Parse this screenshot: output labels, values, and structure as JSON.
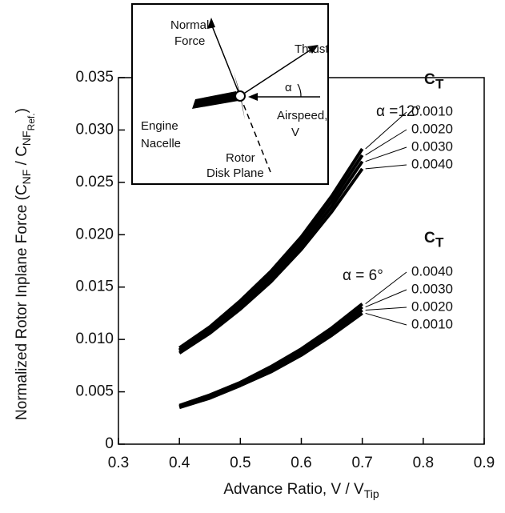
{
  "chart_data": {
    "type": "line",
    "x_label": [
      {
        "text": "Advance Ratio, V / V",
        "level": 0
      },
      {
        "text": "Tip",
        "level": 1
      }
    ],
    "y_label": [
      {
        "text": "Normalized Rotor Inplane Force (C",
        "level": 0
      },
      {
        "text": "NF",
        "level": 1
      },
      {
        "text": " / C",
        "level": 0
      },
      {
        "text": "NF",
        "level": 1
      },
      {
        "text": "Ref.",
        "level": 2
      },
      {
        "text": ")",
        "level": 0
      }
    ],
    "x": [
      0.4,
      0.45,
      0.5,
      0.55,
      0.6,
      0.65,
      0.7
    ],
    "groups": [
      {
        "alpha_label": "α =12°",
        "ct_label": "C",
        "ct_sub": "T",
        "series": [
          {
            "name": "0.0010",
            "color": "#000000",
            "values": [
              0.0092,
              0.0112,
              0.0137,
              0.0165,
              0.0198,
              0.0237,
              0.0282
            ]
          },
          {
            "name": "0.0020",
            "color": "#000000",
            "values": [
              0.009,
              0.011,
              0.0134,
              0.0162,
              0.0194,
              0.0232,
              0.0276
            ]
          },
          {
            "name": "0.0030",
            "color": "#000000",
            "values": [
              0.0089,
              0.0108,
              0.0132,
              0.0159,
              0.019,
              0.0227,
              0.027
            ]
          },
          {
            "name": "0.0040",
            "color": "#000000",
            "values": [
              0.0087,
              0.0106,
              0.0129,
              0.0155,
              0.0186,
              0.0222,
              0.0263
            ]
          }
        ]
      },
      {
        "alpha_label": "α = 6°",
        "ct_label": "C",
        "ct_sub": "T",
        "series": [
          {
            "name": "0.0040",
            "color": "#000000",
            "values": [
              0.0037,
              0.0047,
              0.0059,
              0.0074,
              0.0091,
              0.0111,
              0.0134
            ]
          },
          {
            "name": "0.0030",
            "color": "#000000",
            "values": [
              0.0036,
              0.0046,
              0.0058,
              0.0072,
              0.0089,
              0.0108,
              0.0131
            ]
          },
          {
            "name": "0.0020",
            "color": "#000000",
            "values": [
              0.0036,
              0.0045,
              0.0057,
              0.0071,
              0.0087,
              0.0106,
              0.0128
            ]
          },
          {
            "name": "0.0010",
            "color": "#000000",
            "values": [
              0.0035,
              0.0044,
              0.0056,
              0.0069,
              0.0085,
              0.0104,
              0.0125
            ]
          }
        ]
      }
    ],
    "xlim": [
      0.3,
      0.9
    ],
    "xticks": [
      0.3,
      0.4,
      0.5,
      0.6,
      0.7,
      0.8,
      0.9
    ],
    "ylim": [
      0,
      0.035
    ],
    "yticks": [
      0,
      0.005,
      {
        "value": 0.01,
        "label": "0.010"
      },
      0.015,
      {
        "value": 0.02,
        "label": "0.020"
      },
      0.025,
      {
        "value": 0.03,
        "label": "0.030"
      },
      0.035
    ],
    "inset": {
      "normal": [
        "Normal",
        "Force"
      ],
      "thrust": "Thrust",
      "alpha": "α",
      "nacelle": [
        "Engine",
        "Nacelle"
      ],
      "airspeed": [
        "Airspeed,",
        "V"
      ],
      "disk": [
        "Rotor",
        "Disk Plane"
      ]
    }
  }
}
